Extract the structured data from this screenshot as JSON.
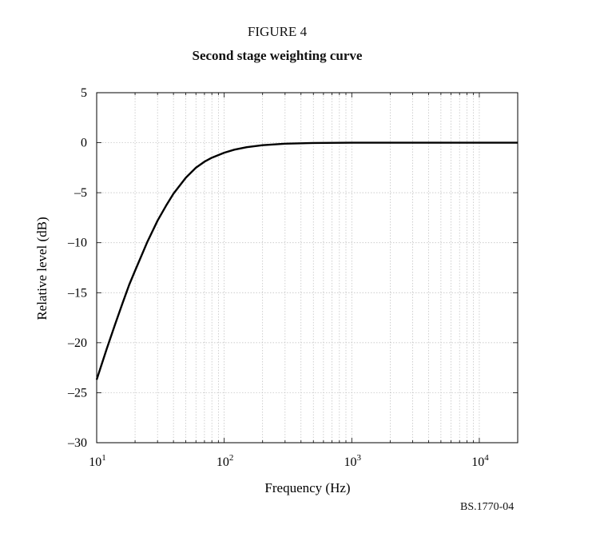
{
  "figure": {
    "label": "FIGURE 4",
    "title": "Second stage weighting curve",
    "reference": "BS.1770-04"
  },
  "chart_data": {
    "type": "line",
    "title": "Second stage weighting curve",
    "xlabel": "Frequency (Hz)",
    "ylabel": "Relative level (dB)",
    "xscale": "log",
    "xlim": [
      10,
      20000
    ],
    "ylim": [
      -30,
      5
    ],
    "x_ticks": [
      {
        "value": 10,
        "base": "10",
        "exp": "1"
      },
      {
        "value": 100,
        "base": "10",
        "exp": "2"
      },
      {
        "value": 1000,
        "base": "10",
        "exp": "3"
      },
      {
        "value": 10000,
        "base": "10",
        "exp": "4"
      }
    ],
    "y_ticks": [
      {
        "value": 5,
        "label": "5"
      },
      {
        "value": 0,
        "label": "0"
      },
      {
        "value": -5,
        "label": "–5"
      },
      {
        "value": -10,
        "label": "–10"
      },
      {
        "value": -15,
        "label": "–15"
      },
      {
        "value": -20,
        "label": "–20"
      },
      {
        "value": -25,
        "label": "–25"
      },
      {
        "value": -30,
        "label": "–30"
      }
    ],
    "grid": true,
    "line_color": "#000000",
    "grid_color": "#bbbbbb",
    "series": [
      {
        "x": [
          10,
          12,
          14,
          16,
          18,
          20,
          25,
          30,
          35,
          40,
          50,
          60,
          70,
          80,
          100,
          120,
          150,
          200,
          300,
          500,
          1000,
          2000,
          5000,
          10000,
          20000
        ],
        "y": [
          -23.7,
          -20.6,
          -18.1,
          -16.0,
          -14.2,
          -12.8,
          -9.9,
          -7.8,
          -6.3,
          -5.1,
          -3.5,
          -2.5,
          -1.9,
          -1.5,
          -1.0,
          -0.7,
          -0.45,
          -0.25,
          -0.1,
          -0.03,
          0,
          0,
          0,
          0,
          0
        ]
      }
    ]
  }
}
